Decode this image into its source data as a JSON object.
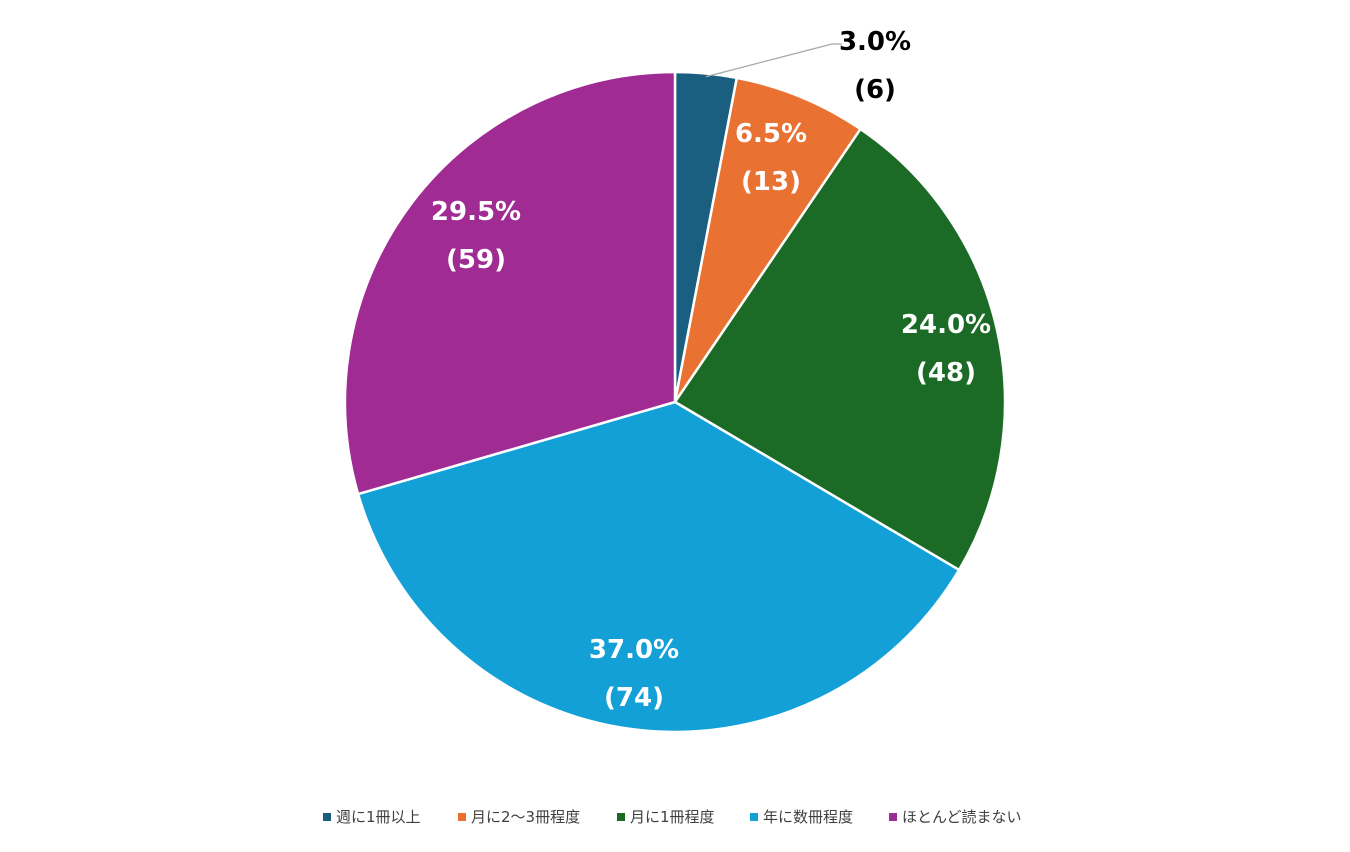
{
  "chart_data": {
    "type": "pie",
    "title": "",
    "categories": [
      "週に1冊以上",
      "月に2〜3冊程度",
      "月に1冊程度",
      "年に数冊程度",
      "ほとんど読まない"
    ],
    "values": [
      6,
      13,
      48,
      74,
      59
    ],
    "percent_labels": [
      "3.0%",
      "6.5%",
      "24.0%",
      "37.0%",
      "29.5%"
    ],
    "count_labels": [
      "(6)",
      "(13)",
      "(48)",
      "(74)",
      "(59)"
    ],
    "colors": [
      "#1a5e80",
      "#e97132",
      "#1b6b26",
      "#12a0d7",
      "#a02b93"
    ],
    "start_angle_deg": 0,
    "direction": "clockwise",
    "legend": "bottom"
  }
}
